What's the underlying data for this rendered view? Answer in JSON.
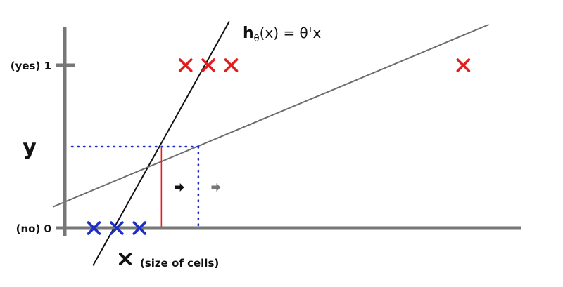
{
  "chart_data": {
    "type": "scatter",
    "title": "",
    "xlabel": "x",
    "xlabel_suffix": "(size of cells)",
    "ylabel": "y",
    "xlim": [
      0,
      100
    ],
    "ylim": [
      -0.2,
      1.25
    ],
    "y_ticks": [
      {
        "value": 0,
        "label": "(no) 0"
      },
      {
        "value": 1,
        "label": "(yes) 1"
      }
    ],
    "hypothesis_label": {
      "h": "h",
      "sub": "θ",
      "rest": "(x) = θ",
      "sup": "T",
      "end": "x"
    },
    "series": [
      {
        "name": "no",
        "color": "#1c2ec8",
        "x": [
          6.4,
          11.4,
          16.4
        ],
        "y": [
          0,
          0,
          0
        ]
      },
      {
        "name": "yes",
        "color": "#e01e1e",
        "x": [
          26.5,
          31.5,
          36.5,
          87.4
        ],
        "y": [
          1,
          1,
          1,
          1
        ]
      }
    ],
    "lines": [
      {
        "id": "steep",
        "color": "#111111",
        "x": [
          6.2,
          36.1
        ],
        "y": [
          -0.23,
          1.27
        ]
      },
      {
        "id": "shallow",
        "color": "#6d6d6d",
        "x": [
          -2.6,
          93.0
        ],
        "y": [
          0.13,
          1.25
        ]
      }
    ],
    "threshold_y": 0.5,
    "thresholds": [
      {
        "x": 21.2,
        "color": "#e01e1e",
        "style": "solid"
      },
      {
        "x": 29.3,
        "color": "#1c2ec8",
        "style": "dotted"
      }
    ],
    "shift_arrows": [
      {
        "x": 25.1,
        "y": 0.25,
        "color": "#111111"
      },
      {
        "x": 33.1,
        "y": 0.25,
        "color": "#777777"
      }
    ],
    "colors": {
      "axis": "#777777",
      "red": "#e01e1e",
      "blue": "#1c2ec8"
    }
  }
}
